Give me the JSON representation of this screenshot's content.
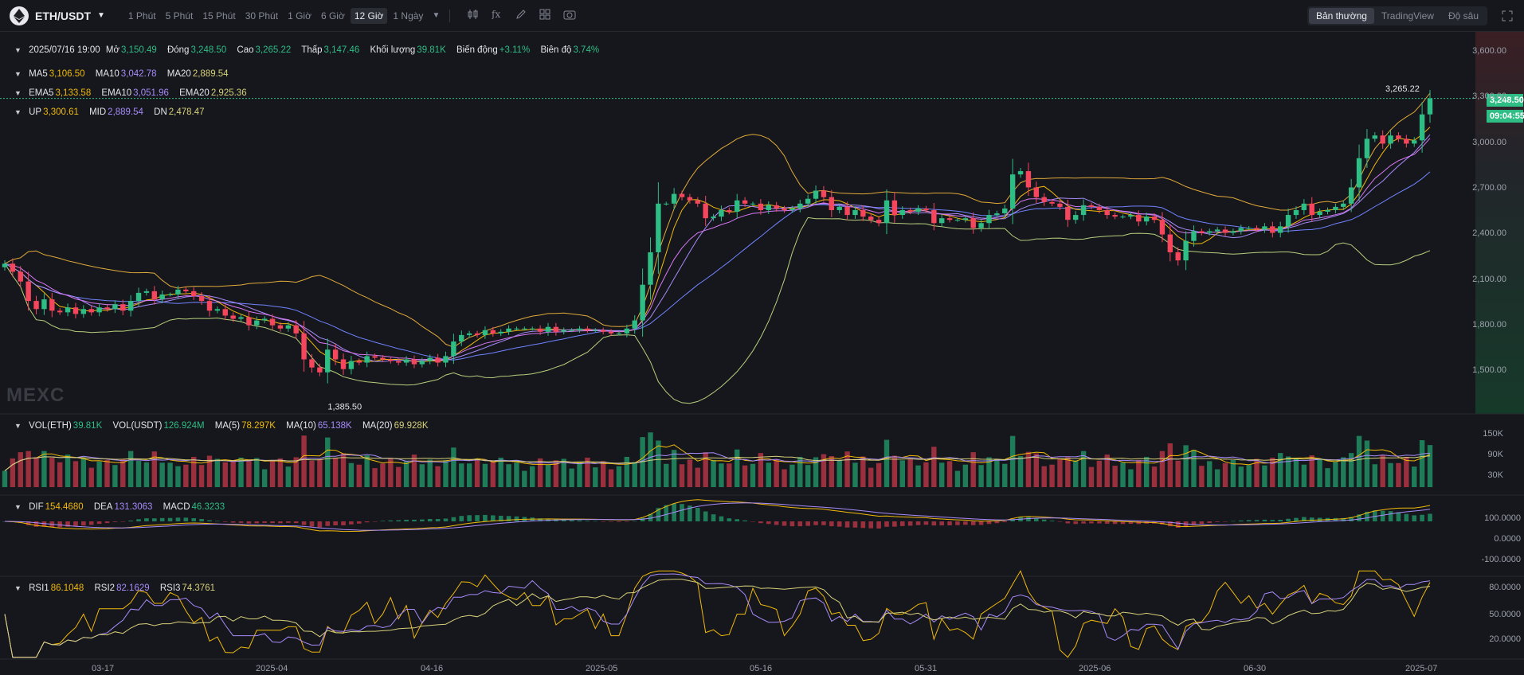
{
  "header": {
    "pair": "ETH/USDT",
    "timeframes": [
      "1 Phút",
      "5 Phút",
      "15 Phút",
      "30 Phút",
      "1 Giờ",
      "6 Giờ",
      "12 Giờ",
      "1 Ngày"
    ],
    "active_timeframe": "12 Giờ",
    "view_modes": [
      "Bản thường",
      "TradingView",
      "Độ sâu"
    ],
    "active_view": "Bản thường"
  },
  "ohlc": {
    "date": "2025/07/16 19:00",
    "open_label": "Mở",
    "open": "3,150.49",
    "close_label": "Đóng",
    "close": "3,248.50",
    "high_label": "Cao",
    "high": "3,265.22",
    "low_label": "Thấp",
    "low": "3,147.46",
    "volume_label": "Khối lượng",
    "volume": "39.81K",
    "change_label": "Biến động",
    "change": "+3.11%",
    "amplitude_label": "Biên độ",
    "amplitude": "3.74%"
  },
  "ma": {
    "ma5_label": "MA5",
    "ma5": "3,106.50",
    "ma10_label": "MA10",
    "ma10": "3,042.78",
    "ma20_label": "MA20",
    "ma20": "2,889.54"
  },
  "ema": {
    "ema5_label": "EMA5",
    "ema5": "3,133.58",
    "ema10_label": "EMA10",
    "ema10": "3,051.96",
    "ema20_label": "EMA20",
    "ema20": "2,925.36"
  },
  "boll": {
    "up_label": "UP",
    "up": "3,300.61",
    "mid_label": "MID",
    "mid": "2,889.54",
    "dn_label": "DN",
    "dn": "2,478.47"
  },
  "vol": {
    "eth_label": "VOL(ETH)",
    "eth": "39.81K",
    "usdt_label": "VOL(USDT)",
    "usdt": "126.924M",
    "ma5_label": "MA(5)",
    "ma5": "78.297K",
    "ma10_label": "MA(10)",
    "ma10": "65.138K",
    "ma20_label": "MA(20)",
    "ma20": "69.928K"
  },
  "macd": {
    "dif_label": "DIF",
    "dif": "154.4680",
    "dea_label": "DEA",
    "dea": "131.3063",
    "macd_label": "MACD",
    "macd": "46.3233"
  },
  "rsi": {
    "rsi1_label": "RSI1",
    "rsi1": "86.1048",
    "rsi2_label": "RSI2",
    "rsi2": "82.1629",
    "rsi3_label": "RSI3",
    "rsi3": "74.3761"
  },
  "price_axis": [
    "3,600.00",
    "3,300.00",
    "3,000.00",
    "2,700.00",
    "2,400.00",
    "2,100.00",
    "1,800.00",
    "1,500.00"
  ],
  "vol_axis": [
    "150K",
    "90K",
    "30K"
  ],
  "macd_axis": [
    "100.0000",
    "0.0000",
    "-100.0000"
  ],
  "rsi_axis": [
    "80.0000",
    "50.0000",
    "20.0000"
  ],
  "time_axis": [
    "03-17",
    "2025-04",
    "04-16",
    "2025-05",
    "05-16",
    "05-31",
    "2025-06",
    "06-30",
    "2025-07"
  ],
  "last_price": "3,248.50",
  "countdown": "09:04:55",
  "high_marker": "3,265.22",
  "low_marker": "1,385.50",
  "watermark": "MEXC",
  "colors": {
    "up": "#2ebd85",
    "down": "#f6465d",
    "ma5": "#f0b90b",
    "ma10": "#a78bfa",
    "ma20": "#d6d07a",
    "mid": "#6f83ff"
  },
  "chart_data": {
    "type": "candlestick",
    "price_close": [
      2230,
      2180,
      2120,
      2000,
      1950,
      2010,
      1940,
      1930,
      1960,
      1920,
      1950,
      1930,
      1960,
      1950,
      1980,
      1940,
      2000,
      2050,
      2060,
      2010,
      2040,
      2040,
      2070,
      2060,
      2030,
      2000,
      1940,
      1950,
      1910,
      1890,
      1900,
      1850,
      1880,
      1890,
      1850,
      1830,
      1850,
      1800,
      1640,
      1590,
      1560,
      1700,
      1640,
      1580,
      1630,
      1620,
      1660,
      1650,
      1640,
      1630,
      1620,
      1640,
      1610,
      1630,
      1650,
      1620,
      1660,
      1750,
      1790,
      1800,
      1790,
      1820,
      1800,
      1810,
      1830,
      1830,
      1830,
      1830,
      1810,
      1840,
      1810,
      1820,
      1820,
      1830,
      1820,
      1820,
      1810,
      1800,
      1800,
      1830,
      1880,
      2100,
      2300,
      2600,
      2600,
      2660,
      2640,
      2620,
      2600,
      2510,
      2520,
      2560,
      2550,
      2620,
      2600,
      2600,
      2560,
      2590,
      2570,
      2560,
      2570,
      2600,
      2630,
      2680,
      2640,
      2560,
      2580,
      2530,
      2560,
      2520,
      2500,
      2480,
      2620,
      2530,
      2560,
      2550,
      2570,
      2560,
      2480,
      2510,
      2500,
      2500,
      2510,
      2450,
      2480,
      2530,
      2540,
      2570,
      2780,
      2800,
      2700,
      2640,
      2610,
      2600,
      2580,
      2500,
      2530,
      2590,
      2580,
      2560,
      2530,
      2520,
      2520,
      2530,
      2490,
      2520,
      2500,
      2410,
      2300,
      2250,
      2370,
      2430,
      2420,
      2430,
      2440,
      2420,
      2430,
      2450,
      2450,
      2440,
      2460,
      2420,
      2460,
      2530,
      2560,
      2600,
      2530,
      2550,
      2560,
      2580,
      2600,
      2700,
      2880,
      3000,
      3020,
      2970,
      3020,
      3000,
      2970,
      2990,
      3150,
      3248.5
    ],
    "price_axis_range": [
      1500,
      3600
    ],
    "last": 3248.5,
    "high": 3265.22,
    "low": 1385.5
  }
}
